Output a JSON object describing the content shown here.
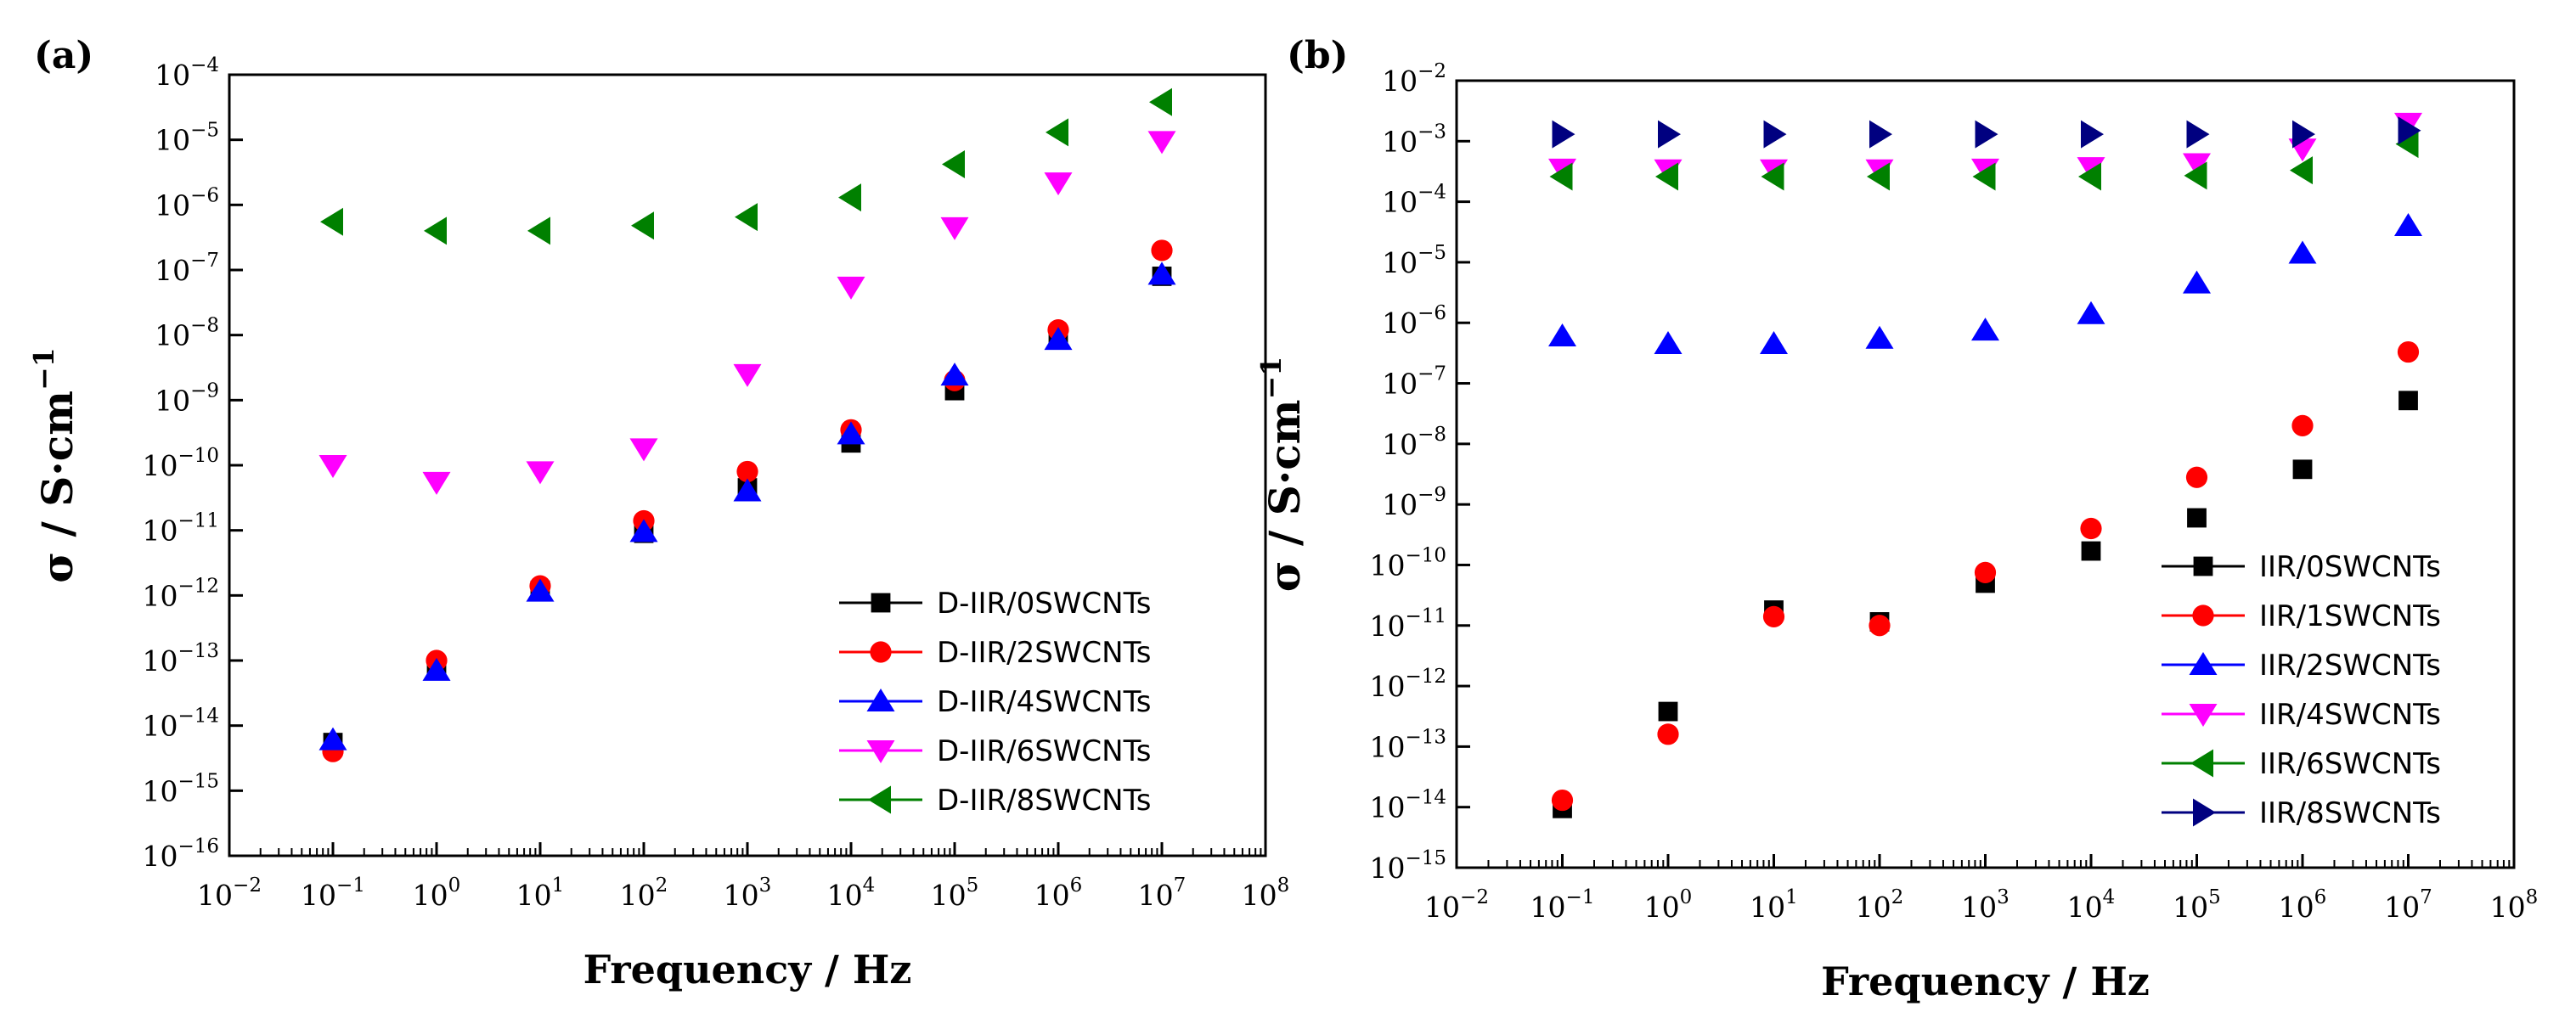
{
  "chart_data": [
    {
      "type": "scatter",
      "panel_label": "(a)",
      "xlabel": "Frequency / Hz",
      "ylabel": "σ / S·cm",
      "ylabel_sup": "−1",
      "x_scale": "log",
      "y_scale": "log",
      "xlim": [
        0.01,
        100000000
      ],
      "ylim": [
        1e-16,
        0.0001
      ],
      "x_ticks": [
        {
          "base": "10",
          "exp": "−2",
          "value": 0.01
        },
        {
          "base": "10",
          "exp": "−1",
          "value": 0.1
        },
        {
          "base": "10",
          "exp": "0",
          "value": 1
        },
        {
          "base": "10",
          "exp": "1",
          "value": 10
        },
        {
          "base": "10",
          "exp": "2",
          "value": 100
        },
        {
          "base": "10",
          "exp": "3",
          "value": 1000
        },
        {
          "base": "10",
          "exp": "4",
          "value": 10000
        },
        {
          "base": "10",
          "exp": "5",
          "value": 100000
        },
        {
          "base": "10",
          "exp": "6",
          "value": 1000000
        },
        {
          "base": "10",
          "exp": "7",
          "value": 10000000
        },
        {
          "base": "10",
          "exp": "8",
          "value": 100000000
        }
      ],
      "y_ticks": [
        {
          "base": "10",
          "exp": "−16",
          "value": 1e-16
        },
        {
          "base": "10",
          "exp": "−15",
          "value": 1e-15
        },
        {
          "base": "10",
          "exp": "−14",
          "value": 1e-14
        },
        {
          "base": "10",
          "exp": "−13",
          "value": 1e-13
        },
        {
          "base": "10",
          "exp": "−12",
          "value": 1e-12
        },
        {
          "base": "10",
          "exp": "−11",
          "value": 1e-11
        },
        {
          "base": "10",
          "exp": "−10",
          "value": 1e-10
        },
        {
          "base": "10",
          "exp": "−9",
          "value": 1e-09
        },
        {
          "base": "10",
          "exp": "−8",
          "value": 1e-08
        },
        {
          "base": "10",
          "exp": "−7",
          "value": 1e-07
        },
        {
          "base": "10",
          "exp": "−6",
          "value": 1e-06
        },
        {
          "base": "10",
          "exp": "−5",
          "value": 1e-05
        },
        {
          "base": "10",
          "exp": "−4",
          "value": 0.0001
        }
      ],
      "grid": false,
      "legend_position": "bottom-right",
      "x": [
        0.1,
        1,
        10,
        100,
        1000,
        10000,
        100000,
        1000000,
        10000000
      ],
      "series": [
        {
          "name": "D-IIR/0SWCNTs",
          "marker": "square",
          "color": "#000000",
          "values": [
            5.5e-15,
            7.5e-14,
            1.2e-12,
            9e-12,
            4.5e-11,
            2.2e-10,
            1.4e-09,
            8.5e-09,
            8e-08
          ]
        },
        {
          "name": "D-IIR/2SWCNTs",
          "marker": "circle",
          "color": "#ff0000",
          "values": [
            4e-15,
            1e-13,
            1.4e-12,
            1.4e-11,
            8e-11,
            3.5e-10,
            2e-09,
            1.2e-08,
            2e-07
          ]
        },
        {
          "name": "D-IIR/4SWCNTs",
          "marker": "triangle-up",
          "color": "#0000ff",
          "values": [
            6e-15,
            7e-14,
            1.15e-12,
            9.5e-12,
            4e-11,
            3e-10,
            2.4e-09,
            8.5e-09,
            8.5e-08
          ]
        },
        {
          "name": "D-IIR/6SWCNTs",
          "marker": "triangle-down",
          "color": "#ff00ff",
          "values": [
            1e-10,
            5.5e-11,
            8e-11,
            1.8e-10,
            2.5e-09,
            5.5e-08,
            4.5e-07,
            2.2e-06,
            9.5e-06
          ]
        },
        {
          "name": "D-IIR/8SWCNTs",
          "marker": "triangle-left",
          "color": "#008000",
          "values": [
            5.5e-07,
            4e-07,
            4e-07,
            4.8e-07,
            6.5e-07,
            1.3e-06,
            4.2e-06,
            1.3e-05,
            3.8e-05
          ]
        }
      ]
    },
    {
      "type": "scatter",
      "panel_label": "(b)",
      "xlabel": "Frequency / Hz",
      "ylabel": "σ / S·cm",
      "ylabel_sup": "−1",
      "x_scale": "log",
      "y_scale": "log",
      "xlim": [
        0.01,
        100000000
      ],
      "ylim": [
        1e-15,
        0.01
      ],
      "x_ticks": [
        {
          "base": "10",
          "exp": "−2",
          "value": 0.01
        },
        {
          "base": "10",
          "exp": "−1",
          "value": 0.1
        },
        {
          "base": "10",
          "exp": "0",
          "value": 1
        },
        {
          "base": "10",
          "exp": "1",
          "value": 10
        },
        {
          "base": "10",
          "exp": "2",
          "value": 100
        },
        {
          "base": "10",
          "exp": "3",
          "value": 1000
        },
        {
          "base": "10",
          "exp": "4",
          "value": 10000
        },
        {
          "base": "10",
          "exp": "5",
          "value": 100000
        },
        {
          "base": "10",
          "exp": "6",
          "value": 1000000
        },
        {
          "base": "10",
          "exp": "7",
          "value": 10000000
        },
        {
          "base": "10",
          "exp": "8",
          "value": 100000000
        }
      ],
      "y_ticks": [
        {
          "base": "10",
          "exp": "−15",
          "value": 1e-15
        },
        {
          "base": "10",
          "exp": "−14",
          "value": 1e-14
        },
        {
          "base": "10",
          "exp": "−13",
          "value": 1e-13
        },
        {
          "base": "10",
          "exp": "−12",
          "value": 1e-12
        },
        {
          "base": "10",
          "exp": "−11",
          "value": 1e-11
        },
        {
          "base": "10",
          "exp": "−10",
          "value": 1e-10
        },
        {
          "base": "10",
          "exp": "−9",
          "value": 1e-09
        },
        {
          "base": "10",
          "exp": "−8",
          "value": 1e-08
        },
        {
          "base": "10",
          "exp": "−7",
          "value": 1e-07
        },
        {
          "base": "10",
          "exp": "−6",
          "value": 1e-06
        },
        {
          "base": "10",
          "exp": "−5",
          "value": 1e-05
        },
        {
          "base": "10",
          "exp": "−4",
          "value": 0.0001
        },
        {
          "base": "10",
          "exp": "−3",
          "value": 0.001
        },
        {
          "base": "10",
          "exp": "−2",
          "value": 0.01
        }
      ],
      "grid": false,
      "legend_position": "bottom-right",
      "x": [
        0.1,
        1,
        10,
        100,
        1000,
        10000,
        100000,
        1000000,
        10000000
      ],
      "series": [
        {
          "name": "IIR/0SWCNTs",
          "marker": "square",
          "color": "#000000",
          "values": [
            9.5e-15,
            3.8e-13,
            1.8e-11,
            1.15e-11,
            5e-11,
            1.7e-10,
            6e-10,
            3.8e-09,
            5.2e-08
          ]
        },
        {
          "name": "IIR/1SWCNTs",
          "marker": "circle",
          "color": "#ff0000",
          "values": [
            1.3e-14,
            1.6e-13,
            1.4e-11,
            1e-11,
            7.5e-11,
            4e-10,
            2.8e-09,
            2e-08,
            3.3e-07
          ]
        },
        {
          "name": "IIR/2SWCNTs",
          "marker": "triangle-up",
          "color": "#0000ff",
          "values": [
            6e-07,
            4.5e-07,
            4.5e-07,
            5.5e-07,
            7.5e-07,
            1.4e-06,
            4.5e-06,
            1.4e-05,
            4e-05
          ]
        },
        {
          "name": "IIR/4SWCNTs",
          "marker": "triangle-down",
          "color": "#ff00ff",
          "values": [
            0.00035,
            0.00034,
            0.00034,
            0.00034,
            0.00035,
            0.00037,
            0.00043,
            0.00075,
            0.002
          ]
        },
        {
          "name": "IIR/6SWCNTs",
          "marker": "triangle-left",
          "color": "#008000",
          "values": [
            0.00026,
            0.00026,
            0.00026,
            0.00026,
            0.00026,
            0.00026,
            0.00027,
            0.00033,
            0.0009
          ]
        },
        {
          "name": "IIR/8SWCNTs",
          "marker": "triangle-right",
          "color": "#000080",
          "values": [
            0.0013,
            0.0013,
            0.0013,
            0.0013,
            0.0013,
            0.0013,
            0.0013,
            0.0013,
            0.0015
          ]
        }
      ]
    }
  ]
}
